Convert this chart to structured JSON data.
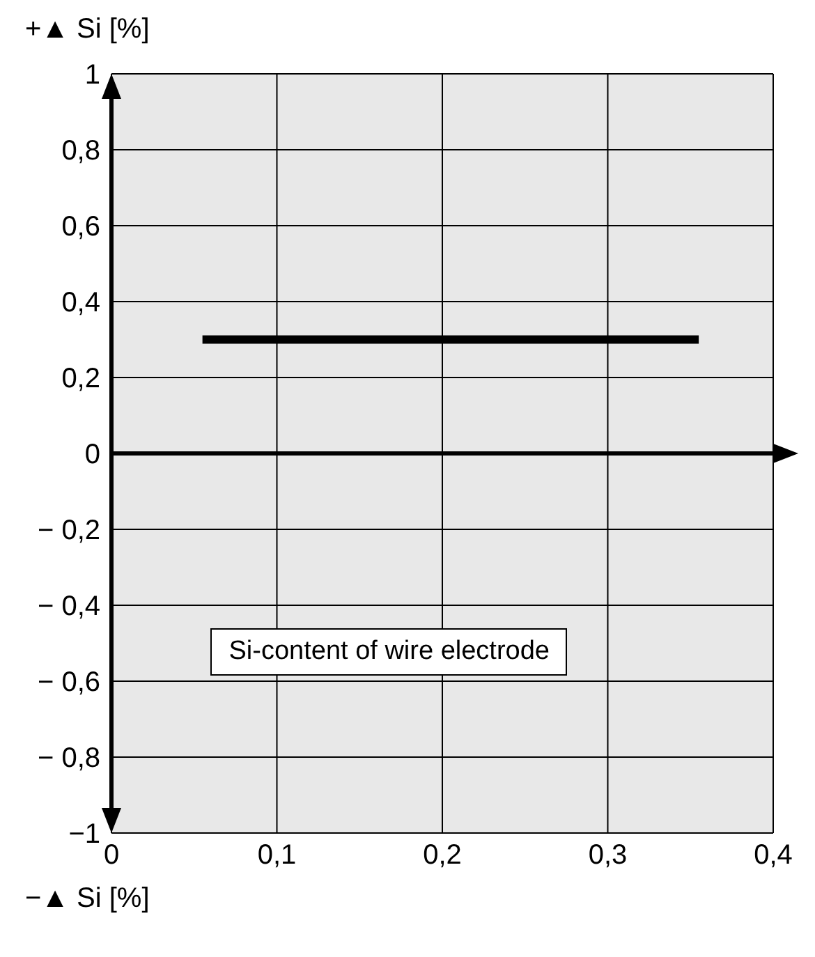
{
  "chart_data": {
    "type": "line",
    "ylabel": "+▲ Si [%]",
    "annotations": [
      "Si-content of wire electrode",
      "−▲ Si [%]"
    ],
    "xlim": [
      0,
      0.4
    ],
    "xticks": [
      0,
      {
        "value": 0.1,
        "label": "0,1"
      },
      {
        "value": 0.2,
        "label": "0,2"
      },
      {
        "value": 0.3,
        "label": "0,3"
      },
      {
        "value": 0.4,
        "label": "0,4"
      }
    ],
    "ylim": [
      -1,
      1
    ],
    "yticks": [
      {
        "value": -1,
        "label": "−1"
      },
      {
        "value": -0.8,
        "label": "− 0,8"
      },
      {
        "value": -0.6,
        "label": "− 0,6"
      },
      {
        "value": -0.4,
        "label": "− 0,4"
      },
      {
        "value": -0.2,
        "label": "− 0,2"
      },
      0,
      {
        "value": 0.2,
        "label": "0,2"
      },
      {
        "value": 0.4,
        "label": "0,4"
      },
      {
        "value": 0.6,
        "label": "0,6"
      },
      {
        "value": 0.8,
        "label": "0,8"
      },
      1
    ],
    "grid": true,
    "marker": "none",
    "line_style": "solid",
    "series": [
      {
        "color": "#000000",
        "x": [
          0.055,
          0.355
        ],
        "values": [
          0.3,
          0.3
        ]
      }
    ]
  }
}
